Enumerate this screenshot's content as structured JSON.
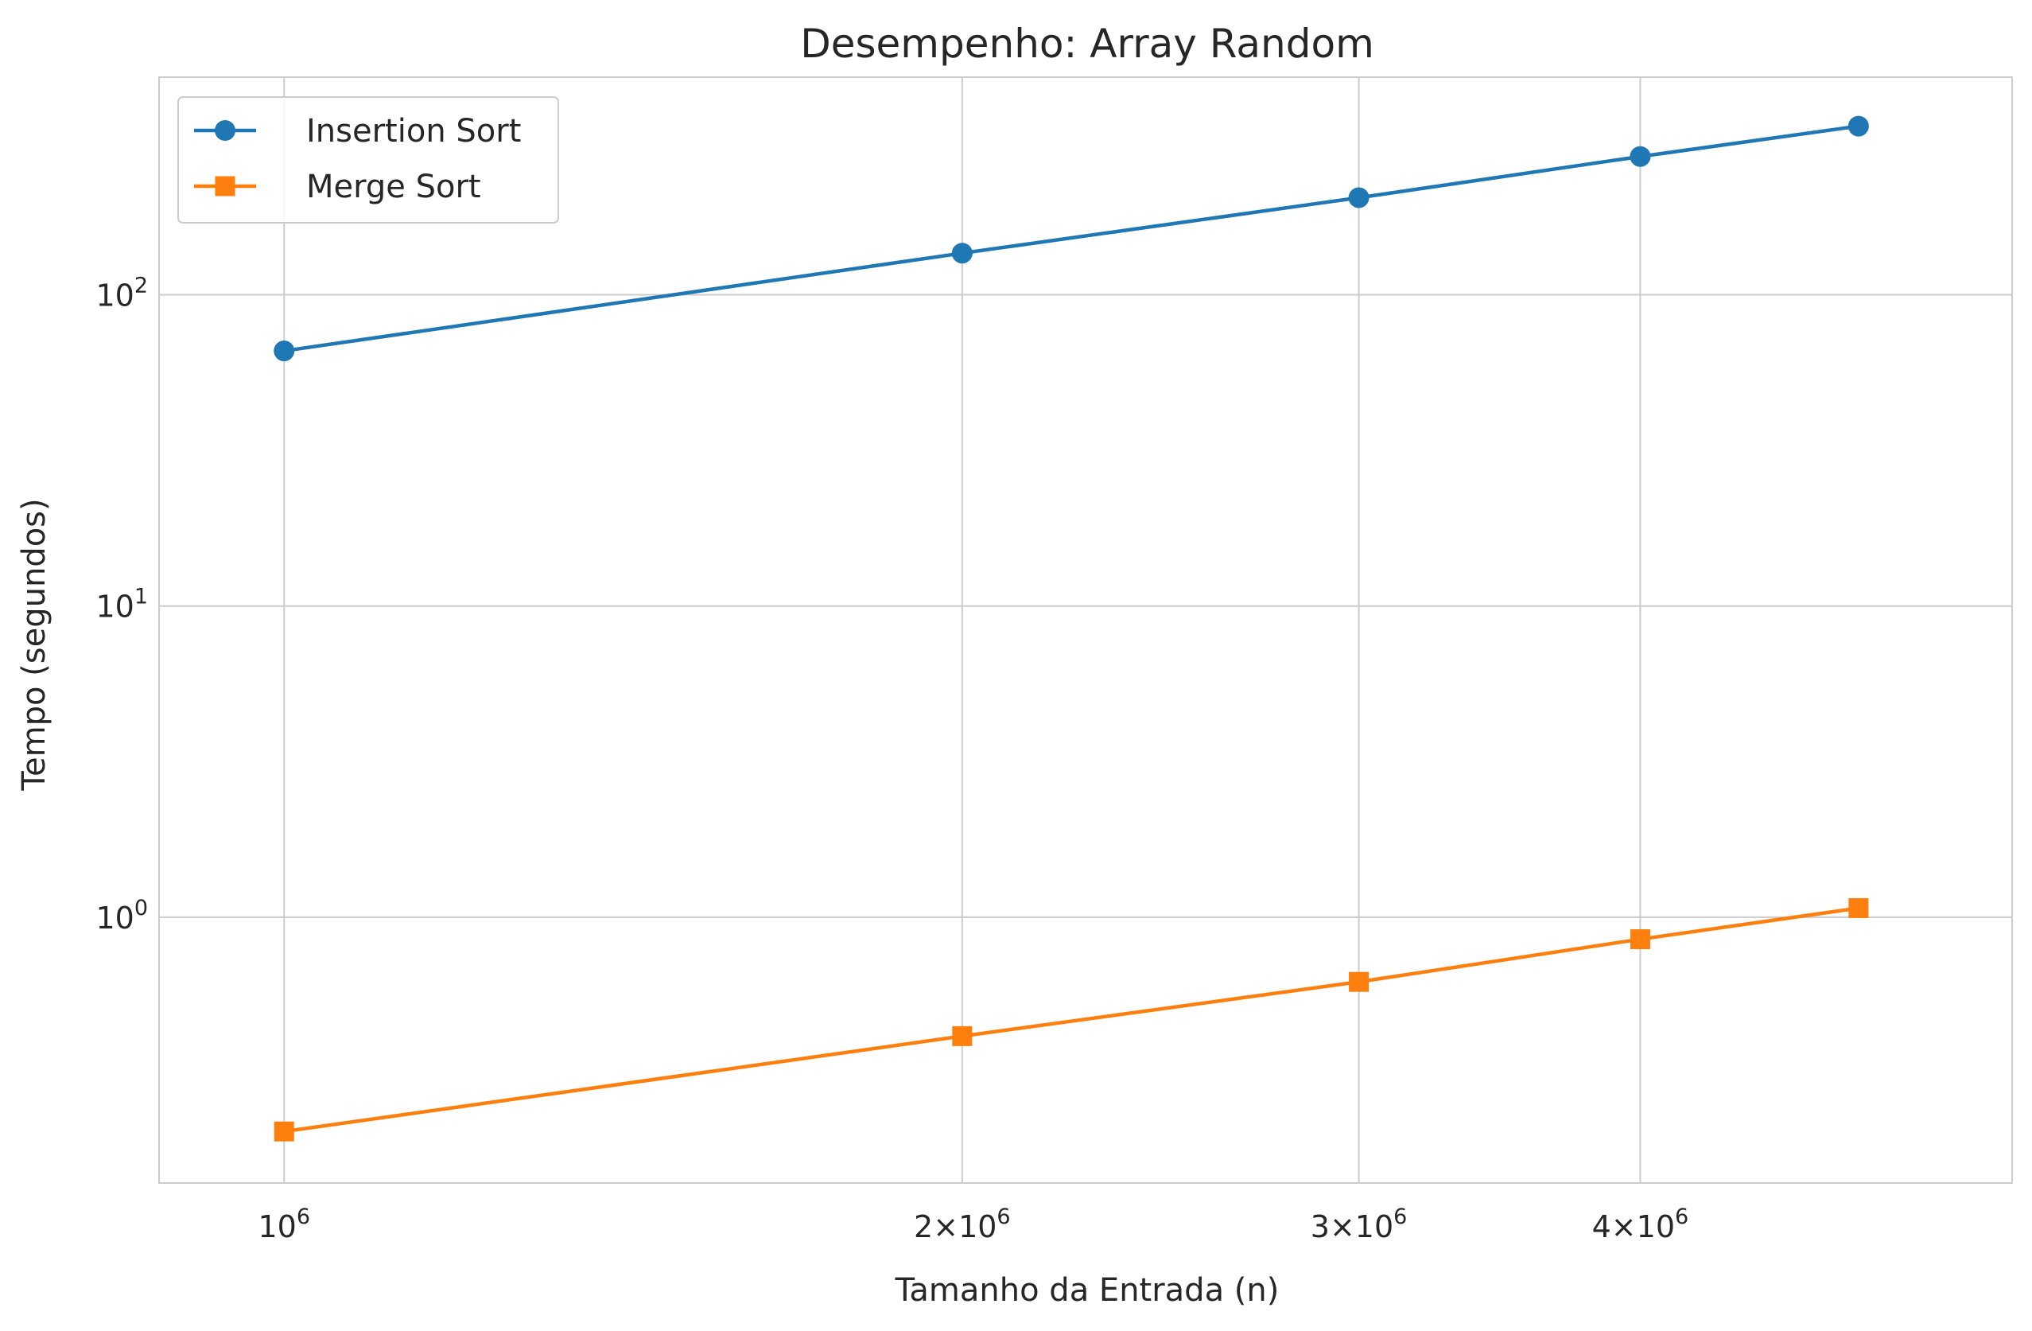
{
  "chart_data": {
    "type": "line",
    "title": "Desempenho: Array Random",
    "xlabel": "Tamanho da Entrada (n)",
    "ylabel": "Tempo (segundos)",
    "xscale": "log",
    "yscale": "log",
    "xlim": [
      880000,
      5850000
    ],
    "ylim": [
      0.14,
      500
    ],
    "grid": true,
    "legend_position": "upper left",
    "x_ticks": [
      {
        "value": 1000000,
        "mant": "",
        "base": "10",
        "exp": "6"
      },
      {
        "value": 2000000,
        "mant": "2×",
        "base": "10",
        "exp": "6"
      },
      {
        "value": 3000000,
        "mant": "3×",
        "base": "10",
        "exp": "6"
      },
      {
        "value": 4000000,
        "mant": "4×",
        "base": "10",
        "exp": "6"
      }
    ],
    "y_ticks": [
      {
        "value": 1,
        "base": "10",
        "exp": "0"
      },
      {
        "value": 10,
        "base": "10",
        "exp": "1"
      },
      {
        "value": 100,
        "base": "10",
        "exp": "2"
      }
    ],
    "x": [
      1000000,
      2000000,
      3000000,
      4000000,
      5000000
    ],
    "series": [
      {
        "name": "Insertion Sort",
        "color": "#1f77b4",
        "marker": "circle",
        "values": [
          66,
          136,
          205,
          278,
          348
        ]
      },
      {
        "name": "Merge Sort",
        "color": "#ff7f0e",
        "marker": "square",
        "values": [
          0.205,
          0.415,
          0.62,
          0.85,
          1.07
        ]
      }
    ]
  }
}
